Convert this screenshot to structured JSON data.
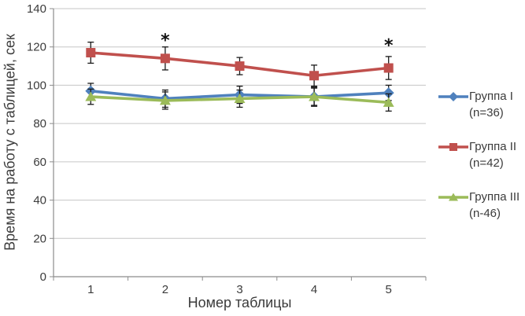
{
  "chart_data": {
    "type": "line",
    "x": [
      1,
      2,
      3,
      4,
      5
    ],
    "xlabel": "Номер таблицы",
    "ylabel": "Время на работу с таблицей, сек",
    "ylim": [
      0,
      140
    ],
    "yticks": [
      0,
      20,
      40,
      60,
      80,
      100,
      120,
      140
    ],
    "grid": true,
    "legend_position": "right",
    "series": [
      {
        "name": "Группа I",
        "size_label": "(n=36)",
        "color": "#4F81BD",
        "marker": "diamond",
        "values": [
          97,
          93,
          95,
          94,
          96
        ],
        "errors": [
          4,
          4.5,
          4.5,
          4.5,
          4
        ]
      },
      {
        "name": "Группа II",
        "size_label": "(n=42)",
        "color": "#C0504D",
        "marker": "square",
        "values": [
          117,
          114,
          110,
          105,
          109
        ],
        "errors": [
          5.5,
          6,
          4.5,
          5.5,
          6
        ]
      },
      {
        "name": "Группа III",
        "size_label": "(n-46)",
        "color": "#9BBB59",
        "marker": "triangle",
        "values": [
          94,
          92,
          93,
          94,
          91
        ],
        "errors": [
          4,
          4.5,
          4.5,
          5,
          4.5
        ]
      }
    ],
    "annotations": [
      {
        "x": 2,
        "y": 127,
        "text": "*"
      },
      {
        "x": 5,
        "y": 124.5,
        "text": "*"
      }
    ],
    "colors": {
      "gridline": "#C6C6C6",
      "axis": "#8C8C8C",
      "text": "#3B3B3B",
      "error_bar": "#1A1A1A",
      "background": "#FFFFFF"
    }
  }
}
